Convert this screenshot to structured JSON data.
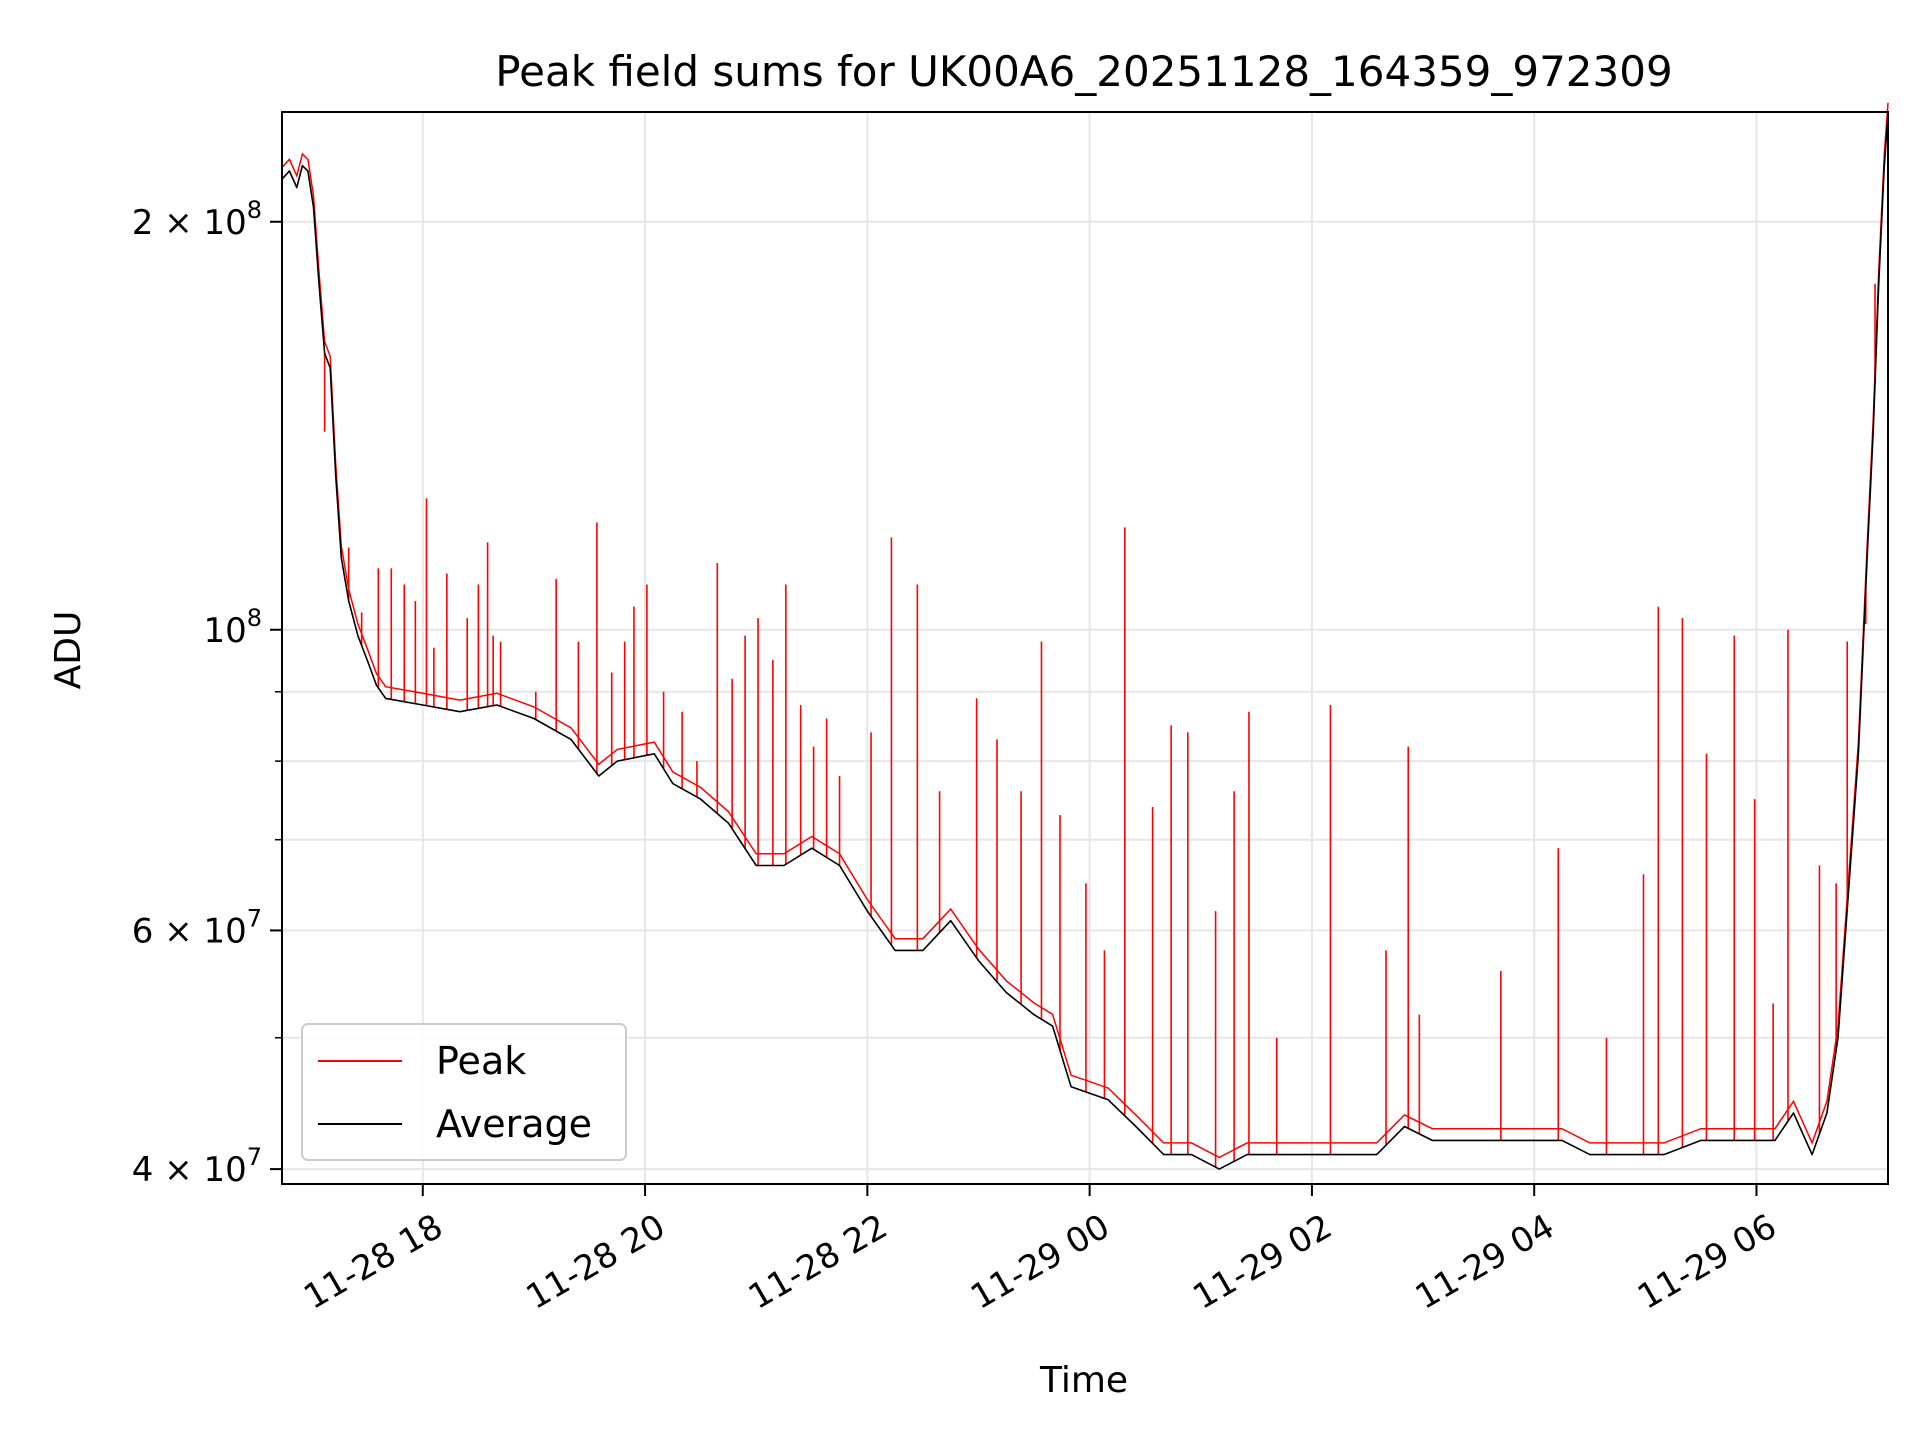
{
  "chart_data": {
    "type": "line",
    "title": "Peak field sums for UK00A6_20251128_164359_972309",
    "xlabel": "Time",
    "ylabel": "ADU",
    "x_type": "time",
    "xlim": [
      "2025-11-28 16:44",
      "2025-11-29 07:11"
    ],
    "ylim": [
      39000000,
      241000000
    ],
    "yscale": "log",
    "grid": true,
    "legend_position": "lower-left",
    "x_ticks": [
      {
        "time": "2025-11-28 18:00",
        "label": "11-28 18"
      },
      {
        "time": "2025-11-28 20:00",
        "label": "11-28 20"
      },
      {
        "time": "2025-11-28 22:00",
        "label": "11-28 22"
      },
      {
        "time": "2025-11-29 00:00",
        "label": "11-29 00"
      },
      {
        "time": "2025-11-29 02:00",
        "label": "11-29 02"
      },
      {
        "time": "2025-11-29 04:00",
        "label": "11-29 04"
      },
      {
        "time": "2025-11-29 06:00",
        "label": "11-29 06"
      }
    ],
    "y_ticks": [
      {
        "value": 40000000,
        "label": "4 × 10^7",
        "mantissa": "4 × 10",
        "exp": "7"
      },
      {
        "value": 60000000,
        "label": "6 × 10^7",
        "mantissa": "6 × 10",
        "exp": "7"
      },
      {
        "value": 100000000,
        "label": "10^8",
        "mantissa": "10",
        "exp": "8"
      },
      {
        "value": 200000000,
        "label": "2 × 10^8",
        "mantissa": "2 × 10",
        "exp": "8"
      }
    ],
    "y_minor_ticks": [
      50000000,
      70000000,
      80000000,
      90000000
    ],
    "series": [
      {
        "name": "Peak",
        "color": "#ff0000",
        "type": "spikes",
        "spikes": [
          [
            "2025-11-28 17:07",
            140000000.0
          ],
          [
            "2025-11-28 17:20",
            115000000.0
          ],
          [
            "2025-11-28 17:27",
            103000000.0
          ],
          [
            "2025-11-28 17:36",
            111000000.0
          ],
          [
            "2025-11-28 17:43",
            111000000.0
          ],
          [
            "2025-11-28 17:50",
            108000000.0
          ],
          [
            "2025-11-28 17:56",
            105000000.0
          ],
          [
            "2025-11-28 18:02",
            125000000.0
          ],
          [
            "2025-11-28 18:06",
            97000000.0
          ],
          [
            "2025-11-28 18:13",
            110000000.0
          ],
          [
            "2025-11-28 18:24",
            102000000.0
          ],
          [
            "2025-11-28 18:30",
            108000000.0
          ],
          [
            "2025-11-28 18:35",
            116000000.0
          ],
          [
            "2025-11-28 18:38",
            99000000.0
          ],
          [
            "2025-11-28 18:42",
            98000000.0
          ],
          [
            "2025-11-28 19:01",
            90000000.0
          ],
          [
            "2025-11-28 19:12",
            109000000.0
          ],
          [
            "2025-11-28 19:24",
            98000000.0
          ],
          [
            "2025-11-28 19:34",
            120000000.0
          ],
          [
            "2025-11-28 19:42",
            93000000.0
          ],
          [
            "2025-11-28 19:49",
            98000000.0
          ],
          [
            "2025-11-28 19:54",
            104000000.0
          ],
          [
            "2025-11-28 20:01",
            108000000.0
          ],
          [
            "2025-11-28 20:10",
            90000000.0
          ],
          [
            "2025-11-28 20:20",
            87000000.0
          ],
          [
            "2025-11-28 20:28",
            80000000.0
          ],
          [
            "2025-11-28 20:39",
            112000000.0
          ],
          [
            "2025-11-28 20:47",
            92000000.0
          ],
          [
            "2025-11-28 20:54",
            99000000.0
          ],
          [
            "2025-11-28 21:01",
            102000000.0
          ],
          [
            "2025-11-28 21:09",
            95000000.0
          ],
          [
            "2025-11-28 21:16",
            108000000.0
          ],
          [
            "2025-11-28 21:24",
            88000000.0
          ],
          [
            "2025-11-28 21:31",
            82000000.0
          ],
          [
            "2025-11-28 21:38",
            86000000.0
          ],
          [
            "2025-11-28 21:45",
            78000000.0
          ],
          [
            "2025-11-28 22:02",
            84000000.0
          ],
          [
            "2025-11-28 22:13",
            117000000.0
          ],
          [
            "2025-11-28 22:27",
            108000000.0
          ],
          [
            "2025-11-28 22:39",
            76000000.0
          ],
          [
            "2025-11-28 22:59",
            89000000.0
          ],
          [
            "2025-11-28 23:10",
            83000000.0
          ],
          [
            "2025-11-28 23:23",
            76000000.0
          ],
          [
            "2025-11-28 23:34",
            98000000.0
          ],
          [
            "2025-11-28 23:44",
            73000000.0
          ],
          [
            "2025-11-28 23:58",
            65000000.0
          ],
          [
            "2025-11-29 00:08",
            58000000.0
          ],
          [
            "2025-11-29 00:19",
            119000000.0
          ],
          [
            "2025-11-29 00:34",
            74000000.0
          ],
          [
            "2025-11-29 00:44",
            85000000.0
          ],
          [
            "2025-11-29 00:53",
            84000000.0
          ],
          [
            "2025-11-29 01:08",
            62000000.0
          ],
          [
            "2025-11-29 01:18",
            76000000.0
          ],
          [
            "2025-11-29 01:26",
            87000000.0
          ],
          [
            "2025-11-29 01:41",
            50000000.0
          ],
          [
            "2025-11-29 02:10",
            88000000.0
          ],
          [
            "2025-11-29 02:40",
            58000000.0
          ],
          [
            "2025-11-29 02:52",
            82000000.0
          ],
          [
            "2025-11-29 02:58",
            52000000.0
          ],
          [
            "2025-11-29 03:42",
            56000000.0
          ],
          [
            "2025-11-29 04:13",
            69000000.0
          ],
          [
            "2025-11-29 04:39",
            50000000.0
          ],
          [
            "2025-11-29 04:59",
            66000000.0
          ],
          [
            "2025-11-29 05:07",
            104000000.0
          ],
          [
            "2025-11-29 05:20",
            102000000.0
          ],
          [
            "2025-11-29 05:33",
            81000000.0
          ],
          [
            "2025-11-29 05:48",
            99000000.0
          ],
          [
            "2025-11-29 05:59",
            75000000.0
          ],
          [
            "2025-11-29 06:09",
            53000000.0
          ],
          [
            "2025-11-29 06:17",
            100000000.0
          ],
          [
            "2025-11-29 06:34",
            67000000.0
          ],
          [
            "2025-11-29 06:43",
            65000000.0
          ],
          [
            "2025-11-29 06:49",
            98000000.0
          ],
          [
            "2025-11-29 06:59",
            101000000.0
          ],
          [
            "2025-11-29 07:04",
            180000000.0
          ]
        ]
      },
      {
        "name": "Average",
        "color": "#000000",
        "type": "line",
        "points": [
          [
            "2025-11-28 16:44",
            215000000.0
          ],
          [
            "2025-11-28 16:48",
            218000000.0
          ],
          [
            "2025-11-28 16:52",
            212000000.0
          ],
          [
            "2025-11-28 16:55",
            220000000.0
          ],
          [
            "2025-11-28 16:58",
            218000000.0
          ],
          [
            "2025-11-28 17:01",
            205000000.0
          ],
          [
            "2025-11-28 17:04",
            180000000.0
          ],
          [
            "2025-11-28 17:07",
            160000000.0
          ],
          [
            "2025-11-28 17:10",
            156000000.0
          ],
          [
            "2025-11-28 17:13",
            130000000.0
          ],
          [
            "2025-11-28 17:16",
            113000000.0
          ],
          [
            "2025-11-28 17:20",
            105000000.0
          ],
          [
            "2025-11-28 17:25",
            99000000.0
          ],
          [
            "2025-11-28 17:30",
            95000000.0
          ],
          [
            "2025-11-28 17:35",
            91000000.0
          ],
          [
            "2025-11-28 17:40",
            89000000.0
          ],
          [
            "2025-11-28 18:00",
            88000000.0
          ],
          [
            "2025-11-28 18:20",
            87000000.0
          ],
          [
            "2025-11-28 18:40",
            88000000.0
          ],
          [
            "2025-11-28 19:00",
            86000000.0
          ],
          [
            "2025-11-28 19:20",
            83000000.0
          ],
          [
            "2025-11-28 19:35",
            78000000.0
          ],
          [
            "2025-11-28 19:45",
            80000000.0
          ],
          [
            "2025-11-28 20:05",
            81000000.0
          ],
          [
            "2025-11-28 20:15",
            77000000.0
          ],
          [
            "2025-11-28 20:30",
            75000000.0
          ],
          [
            "2025-11-28 20:45",
            72000000.0
          ],
          [
            "2025-11-28 21:00",
            67000000.0
          ],
          [
            "2025-11-28 21:15",
            67000000.0
          ],
          [
            "2025-11-28 21:30",
            69000000.0
          ],
          [
            "2025-11-28 21:45",
            67000000.0
          ],
          [
            "2025-11-28 22:00",
            62000000.0
          ],
          [
            "2025-11-28 22:15",
            58000000.0
          ],
          [
            "2025-11-28 22:30",
            58000000.0
          ],
          [
            "2025-11-28 22:45",
            61000000.0
          ],
          [
            "2025-11-28 23:00",
            57000000.0
          ],
          [
            "2025-11-28 23:15",
            54000000.0
          ],
          [
            "2025-11-28 23:30",
            52000000.0
          ],
          [
            "2025-11-28 23:40",
            51000000.0
          ],
          [
            "2025-11-28 23:50",
            46000000.0
          ],
          [
            "2025-11-29 00:10",
            45000000.0
          ],
          [
            "2025-11-29 00:25",
            43000000.0
          ],
          [
            "2025-11-29 00:40",
            41000000.0
          ],
          [
            "2025-11-29 00:55",
            41000000.0
          ],
          [
            "2025-11-29 01:10",
            40000000.0
          ],
          [
            "2025-11-29 01:25",
            41000000.0
          ],
          [
            "2025-11-29 01:45",
            41000000.0
          ],
          [
            "2025-11-29 02:00",
            41000000.0
          ],
          [
            "2025-11-29 02:20",
            41000000.0
          ],
          [
            "2025-11-29 02:35",
            41000000.0
          ],
          [
            "2025-11-29 02:50",
            43000000.0
          ],
          [
            "2025-11-29 03:05",
            42000000.0
          ],
          [
            "2025-11-29 03:30",
            42000000.0
          ],
          [
            "2025-11-29 03:55",
            42000000.0
          ],
          [
            "2025-11-29 04:15",
            42000000.0
          ],
          [
            "2025-11-29 04:30",
            41000000.0
          ],
          [
            "2025-11-29 04:50",
            41000000.0
          ],
          [
            "2025-11-29 05:10",
            41000000.0
          ],
          [
            "2025-11-29 05:30",
            42000000.0
          ],
          [
            "2025-11-29 05:50",
            42000000.0
          ],
          [
            "2025-11-29 06:10",
            42000000.0
          ],
          [
            "2025-11-29 06:20",
            44000000.0
          ],
          [
            "2025-11-29 06:30",
            41000000.0
          ],
          [
            "2025-11-29 06:38",
            44000000.0
          ],
          [
            "2025-11-29 06:44",
            50000000.0
          ],
          [
            "2025-11-29 06:50",
            65000000.0
          ],
          [
            "2025-11-29 06:55",
            81000000.0
          ],
          [
            "2025-11-29 07:00",
            115000000.0
          ],
          [
            "2025-11-29 07:03",
            140000000.0
          ],
          [
            "2025-11-29 07:06",
            180000000.0
          ],
          [
            "2025-11-29 07:09",
            220000000.0
          ],
          [
            "2025-11-29 07:11",
            240000000.0
          ]
        ]
      }
    ]
  }
}
